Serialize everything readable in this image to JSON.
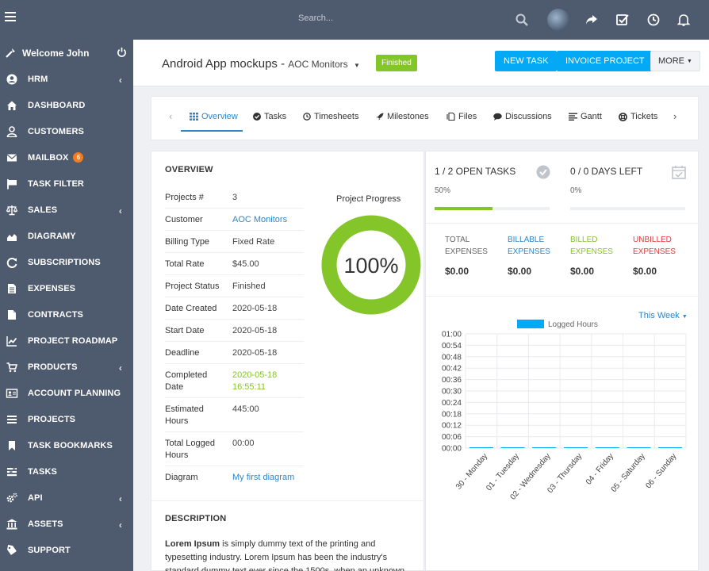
{
  "topbar": {
    "search_placeholder": "Search...",
    "icons": [
      "menu-icon",
      "search-icon",
      "avatar",
      "share-icon",
      "check-square-icon",
      "clock-icon",
      "bell-icon"
    ]
  },
  "sidebar": {
    "welcome": "Welcome John",
    "items": [
      {
        "label": "HRM",
        "icon": "user-circle-icon",
        "has_children": true
      },
      {
        "label": "DASHBOARD",
        "icon": "home-icon"
      },
      {
        "label": "CUSTOMERS",
        "icon": "user-icon"
      },
      {
        "label": "MAILBOX",
        "icon": "envelope-icon",
        "badge": "6"
      },
      {
        "label": "TASK FILTER",
        "icon": "flag-icon"
      },
      {
        "label": "SALES",
        "icon": "balance-scale-icon",
        "has_children": true
      },
      {
        "label": "DIAGRAMY",
        "icon": "area-chart-icon"
      },
      {
        "label": "SUBSCRIPTIONS",
        "icon": "refresh-icon"
      },
      {
        "label": "EXPENSES",
        "icon": "file-text-icon"
      },
      {
        "label": "CONTRACTS",
        "icon": "file-icon"
      },
      {
        "label": "PROJECT ROADMAP",
        "icon": "line-chart-icon"
      },
      {
        "label": "PRODUCTS",
        "icon": "cart-icon",
        "has_children": true
      },
      {
        "label": "ACCOUNT PLANNING",
        "icon": "id-card-icon"
      },
      {
        "label": "PROJECTS",
        "icon": "bars-icon"
      },
      {
        "label": "TASK BOOKMARKS",
        "icon": "bookmark-icon"
      },
      {
        "label": "TASKS",
        "icon": "tasks-icon"
      },
      {
        "label": "API",
        "icon": "cogs-icon",
        "has_children": true
      },
      {
        "label": "ASSETS",
        "icon": "bank-icon",
        "has_children": true
      },
      {
        "label": "SUPPORT",
        "icon": "tag-icon"
      }
    ]
  },
  "header": {
    "title": "Android App mockups",
    "separator": " - ",
    "customer": "AOC Monitors",
    "status": "Finished",
    "new_task": "NEW TASK",
    "invoice_project": "INVOICE PROJECT",
    "more": "MORE"
  },
  "tabs": [
    "Overview",
    "Tasks",
    "Timesheets",
    "Milestones",
    "Files",
    "Discussions",
    "Gantt",
    "Tickets"
  ],
  "overview": {
    "title": "OVERVIEW",
    "rows": [
      {
        "k": "Projects #",
        "v": "3"
      },
      {
        "k": "Customer",
        "v": "AOC Monitors"
      },
      {
        "k": "Billing Type",
        "v": "Fixed Rate"
      },
      {
        "k": "Total Rate",
        "v": "$45.00"
      },
      {
        "k": "Project Status",
        "v": "Finished"
      },
      {
        "k": "Date Created",
        "v": "2020-05-18"
      },
      {
        "k": "Start Date",
        "v": "2020-05-18"
      },
      {
        "k": "Deadline",
        "v": "2020-05-18"
      },
      {
        "k": "Completed Date",
        "v": "2020-05-18 16:55:11"
      },
      {
        "k": "Estimated Hours",
        "v": "445:00"
      },
      {
        "k": "Total Logged Hours",
        "v": "00:00"
      },
      {
        "k": "Diagram",
        "v": "My first diagram"
      }
    ],
    "progress_label": "Project Progress",
    "progress_value": 100,
    "progress_text": "100%",
    "description_title": "DESCRIPTION",
    "description_bold": "Lorem Ipsum",
    "description_text": " is simply dummy text of the printing and typesetting industry. Lorem Ipsum has been the industry's standard dummy text ever since the 1500s, when an unknown printer took a galley"
  },
  "stats": {
    "open_tasks": "1 / 2 OPEN TASKS",
    "open_tasks_pct": "50%",
    "open_tasks_fill": 0.5,
    "days_left": "0 / 0 DAYS LEFT",
    "days_left_pct": "0%",
    "days_left_fill": 0,
    "expenses": [
      {
        "label": "TOTAL EXPENSES",
        "value": "$0.00",
        "color": "#666666"
      },
      {
        "label": "BILLABLE EXPENSES",
        "value": "$0.00",
        "color": "#2e86c9"
      },
      {
        "label": "BILLED EXPENSES",
        "value": "$0.00",
        "color": "#84c529"
      },
      {
        "label": "UNBILLED EXPENSES",
        "value": "$0.00",
        "color": "#e8383a"
      }
    ],
    "period": "This Week"
  },
  "chart_data": {
    "type": "bar",
    "title": "",
    "legend": [
      "Logged Hours"
    ],
    "legend_position": "top",
    "categories": [
      "30 - Monday",
      "01 - Tuesday",
      "02 - Wednesday",
      "03 - Thursday",
      "04 - Friday",
      "05 - Saturday",
      "06 - Sunday"
    ],
    "y_ticks": [
      "00:00",
      "00:06",
      "00:12",
      "00:18",
      "00:24",
      "00:30",
      "00:36",
      "00:42",
      "00:48",
      "00:54",
      "01:00"
    ],
    "series": [
      {
        "name": "Logged Hours",
        "values": [
          0,
          0,
          0,
          0,
          0,
          0,
          0
        ]
      }
    ],
    "ylim": [
      0,
      1
    ],
    "grid": true,
    "color": "#03a9f4"
  }
}
